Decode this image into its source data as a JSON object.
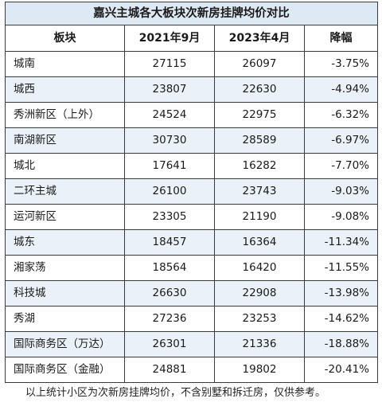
{
  "table": {
    "title": "嘉兴主城各大板块次新房挂牌均价对比",
    "headers": [
      "板块",
      "2021年9月",
      "2023年4月",
      "降幅"
    ],
    "rows": [
      {
        "name": "城南",
        "sep2021": "27115",
        "apr2023": "26097",
        "change": "-3.75%"
      },
      {
        "name": "城西",
        "sep2021": "23807",
        "apr2023": "22630",
        "change": "-4.94%"
      },
      {
        "name": "秀洲新区（上外）",
        "sep2021": "24524",
        "apr2023": "22975",
        "change": "-6.32%"
      },
      {
        "name": "南湖新区",
        "sep2021": "30730",
        "apr2023": "28589",
        "change": "-6.97%"
      },
      {
        "name": "城北",
        "sep2021": "17641",
        "apr2023": "16282",
        "change": "-7.70%"
      },
      {
        "name": "二环主城",
        "sep2021": "26100",
        "apr2023": "23743",
        "change": "-9.03%"
      },
      {
        "name": "运河新区",
        "sep2021": "23305",
        "apr2023": "21190",
        "change": "-9.08%"
      },
      {
        "name": "城东",
        "sep2021": "18457",
        "apr2023": "16364",
        "change": "-11.34%"
      },
      {
        "name": "湘家荡",
        "sep2021": "18564",
        "apr2023": "16420",
        "change": "-11.55%"
      },
      {
        "name": "科技城",
        "sep2021": "26630",
        "apr2023": "22908",
        "change": "-13.98%"
      },
      {
        "name": "秀湖",
        "sep2021": "27236",
        "apr2023": "23253",
        "change": "-14.62%"
      },
      {
        "name": "国际商务区（万达）",
        "sep2021": "26301",
        "apr2023": "21336",
        "change": "-18.88%"
      },
      {
        "name": "国际商务区（金融）",
        "sep2021": "24881",
        "apr2023": "19802",
        "change": "-20.41%"
      }
    ]
  },
  "footnote": "以上统计小区为次新房挂牌均价，不含别墅和拆迁房，仅供参考。"
}
